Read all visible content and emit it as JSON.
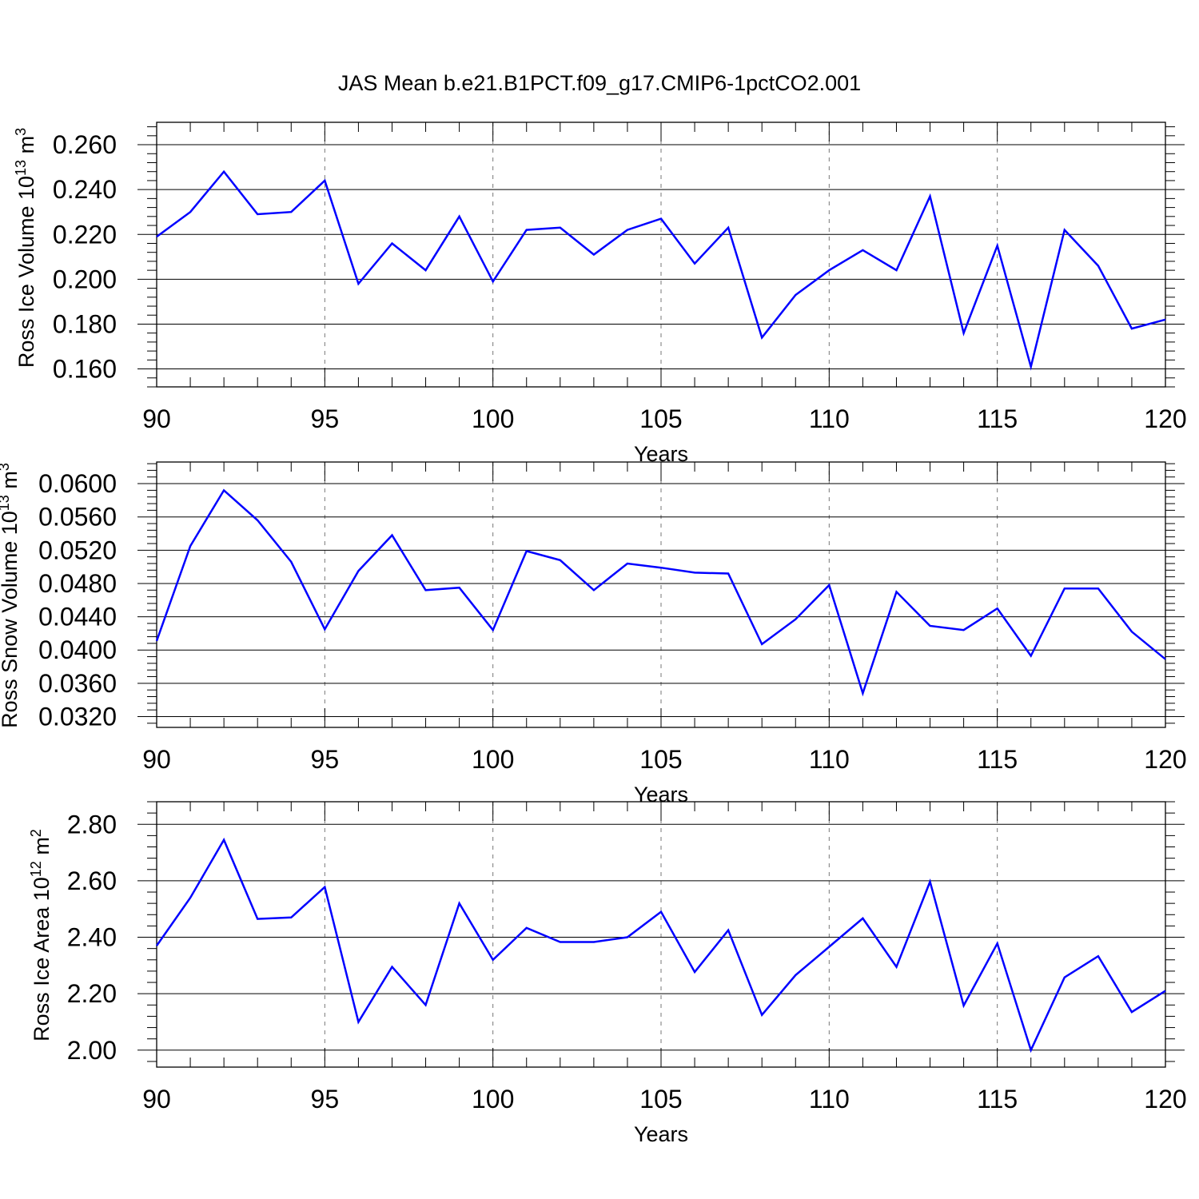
{
  "figure": {
    "title": "JAS Mean b.e21.B1PCT.f09_g17.CMIP6-1pctCO2.001"
  },
  "chart_data": [
    {
      "type": "line",
      "title": "",
      "xlabel": "Years",
      "ylabel": {
        "main": "Ross Ice Volume 10",
        "exp": "13",
        "unit": " m",
        "unit_exp": "3"
      },
      "xlim": [
        90,
        120
      ],
      "ylim": [
        0.152,
        0.27
      ],
      "x_ticks": [
        90,
        95,
        100,
        105,
        110,
        115,
        120
      ],
      "y_ticks": [
        0.16,
        0.18,
        0.2,
        0.22,
        0.24,
        0.26
      ],
      "y_tick_labels": [
        "0.160",
        "0.180",
        "0.200",
        "0.220",
        "0.240",
        "0.260"
      ],
      "grid": "dashed vertical at major x ticks",
      "line_color": "#0000ff",
      "x": [
        90,
        91,
        92,
        93,
        94,
        95,
        96,
        97,
        98,
        99,
        100,
        101,
        102,
        103,
        104,
        105,
        106,
        107,
        108,
        109,
        110,
        111,
        112,
        113,
        114,
        115,
        116,
        117,
        118,
        119,
        120
      ],
      "values": [
        0.219,
        0.23,
        0.248,
        0.229,
        0.23,
        0.244,
        0.198,
        0.216,
        0.204,
        0.228,
        0.199,
        0.222,
        0.223,
        0.211,
        0.222,
        0.227,
        0.207,
        0.223,
        0.174,
        0.193,
        0.204,
        0.213,
        0.204,
        0.237,
        0.176,
        0.215,
        0.161,
        0.222,
        0.206,
        0.178,
        0.182
      ]
    },
    {
      "type": "line",
      "title": "",
      "xlabel": "Years",
      "ylabel": {
        "main": "Ross Snow Volume 10",
        "exp": "13",
        "unit": " m",
        "unit_exp": "3"
      },
      "xlim": [
        90,
        120
      ],
      "ylim": [
        0.0307,
        0.0626
      ],
      "x_ticks": [
        90,
        95,
        100,
        105,
        110,
        115,
        120
      ],
      "y_ticks": [
        0.032,
        0.036,
        0.04,
        0.044,
        0.048,
        0.052,
        0.056,
        0.06
      ],
      "y_tick_labels": [
        "0.0320",
        "0.0360",
        "0.0400",
        "0.0440",
        "0.0480",
        "0.0520",
        "0.0560",
        "0.0600"
      ],
      "grid": "dashed vertical at major x ticks",
      "line_color": "#0000ff",
      "x": [
        90,
        91,
        92,
        93,
        94,
        95,
        96,
        97,
        98,
        99,
        100,
        101,
        102,
        103,
        104,
        105,
        106,
        107,
        108,
        109,
        110,
        111,
        112,
        113,
        114,
        115,
        116,
        117,
        118,
        119,
        120
      ],
      "values": [
        0.0411,
        0.0525,
        0.0592,
        0.0556,
        0.0506,
        0.0425,
        0.0495,
        0.0538,
        0.0472,
        0.0475,
        0.0424,
        0.0519,
        0.0508,
        0.0472,
        0.0504,
        0.0499,
        0.0493,
        0.0492,
        0.0407,
        0.0437,
        0.0478,
        0.0348,
        0.047,
        0.0429,
        0.0424,
        0.045,
        0.0393,
        0.0474,
        0.0474,
        0.0422,
        0.0389
      ]
    },
    {
      "type": "line",
      "title": "",
      "xlabel": "Years",
      "ylabel": {
        "main": "Ross Ice Area 10",
        "exp": "12",
        "unit": " m",
        "unit_exp": "2"
      },
      "xlim": [
        90,
        120
      ],
      "ylim": [
        1.94,
        2.88
      ],
      "x_ticks": [
        90,
        95,
        100,
        105,
        110,
        115,
        120
      ],
      "y_ticks": [
        2.0,
        2.2,
        2.4,
        2.6,
        2.8
      ],
      "y_tick_labels": [
        "2.00",
        "2.20",
        "2.40",
        "2.60",
        "2.80"
      ],
      "grid": "dashed vertical at major x ticks",
      "line_color": "#0000ff",
      "x": [
        90,
        91,
        92,
        93,
        94,
        95,
        96,
        97,
        98,
        99,
        100,
        101,
        102,
        103,
        104,
        105,
        106,
        107,
        108,
        109,
        110,
        111,
        112,
        113,
        114,
        115,
        116,
        117,
        118,
        119,
        120
      ],
      "values": [
        2.37,
        2.54,
        2.745,
        2.465,
        2.47,
        2.578,
        2.1,
        2.295,
        2.16,
        2.52,
        2.32,
        2.433,
        2.383,
        2.383,
        2.4,
        2.49,
        2.277,
        2.425,
        2.125,
        2.266,
        2.366,
        2.467,
        2.295,
        2.597,
        2.158,
        2.378,
        2.0,
        2.258,
        2.333,
        2.135,
        2.21
      ]
    }
  ]
}
